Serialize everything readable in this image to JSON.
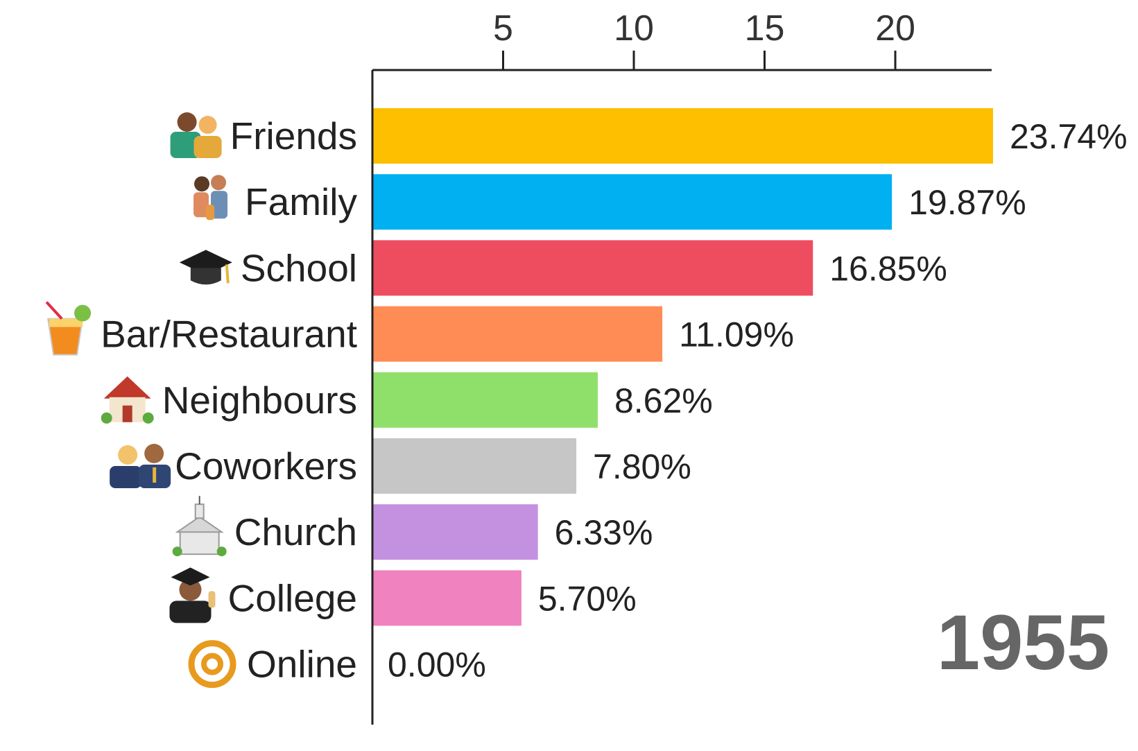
{
  "chart_data": {
    "type": "bar",
    "orientation": "horizontal",
    "title": "",
    "xlabel": "",
    "ylabel": "",
    "xlim": [
      0,
      24
    ],
    "xticks": [
      5,
      10,
      15,
      20
    ],
    "x_axis_position": "top",
    "grid": false,
    "year": "1955",
    "categories": [
      "Friends",
      "Family",
      "School",
      "Bar/Restaurant",
      "Neighbours",
      "Coworkers",
      "Church",
      "College",
      "Online"
    ],
    "values": [
      23.74,
      19.87,
      16.85,
      11.09,
      8.62,
      7.8,
      6.33,
      5.7,
      0.0
    ],
    "value_labels": [
      "23.74%",
      "19.87%",
      "16.85%",
      "11.09%",
      "8.62%",
      "7.80%",
      "6.33%",
      "5.70%",
      "0.00%"
    ],
    "colors": [
      "#FDBF00",
      "#00B0F0",
      "#EE4C5F",
      "#FF8C55",
      "#8FE06A",
      "#C6C6C6",
      "#C490E0",
      "#EF82BF",
      "#FFFFFF"
    ],
    "icons": [
      "friends-icon",
      "family-icon",
      "graduation-cap-icon",
      "tropical-drink-icon",
      "house-icon",
      "coworkers-icon",
      "church-icon",
      "graduate-icon",
      "at-sign-icon"
    ]
  }
}
